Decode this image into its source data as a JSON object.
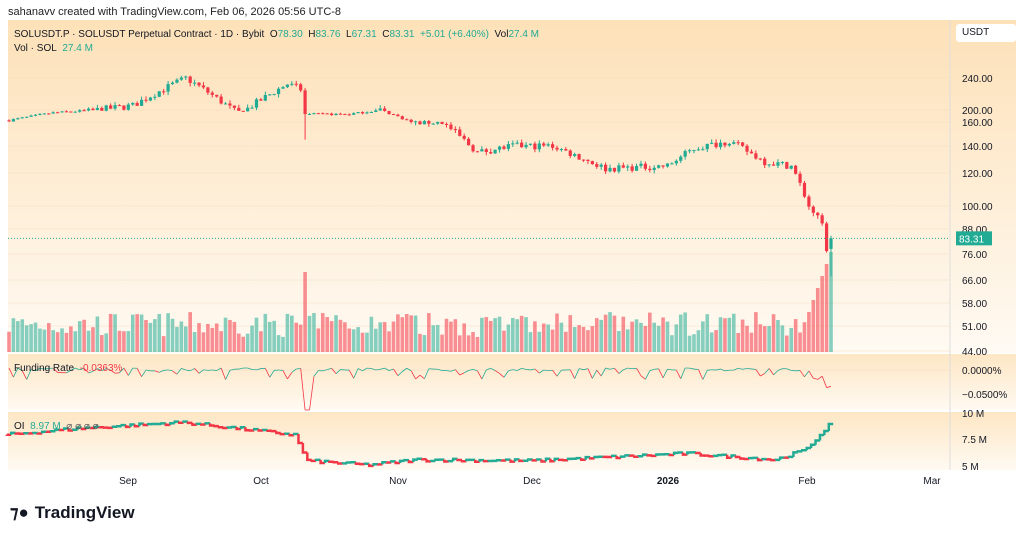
{
  "credit": "sahanavv created with TradingView.com, Feb 06, 2026 05:56 UTC-8",
  "legend": {
    "symbol": "SOLUSDT.P · SOLUSDT Perpetual Contract · 1D · Bybit",
    "o_label": "O",
    "o": "78.30",
    "h_label": "H",
    "h": "83.76",
    "l_label": "L",
    "l": "67.31",
    "c_label": "C",
    "c": "83.31",
    "change": "+5.01 (+6.40%)",
    "vol_label": "Vol",
    "vol": "27.4 M"
  },
  "vol_legend": {
    "label": "Vol · SOL",
    "value": "27.4 M"
  },
  "funding_legend": {
    "label": "Funding Rate",
    "value": "-0.0363%"
  },
  "oi_legend": {
    "label": "OI",
    "value": "8.97 M",
    "icons": "⌀ ⌀ ⌀ ⌀"
  },
  "currency": "USDT",
  "last_price": "83.31",
  "brand": "TradingView",
  "colors": {
    "up": "#22ab94",
    "down": "#f23645",
    "bg_top": "#fde1b8"
  },
  "chart_data": {
    "type": "candlestick",
    "price_ticks": [
      "240.00",
      "200.00",
      "160.00",
      "140.00",
      "120.00",
      "100.00",
      "88.00",
      "76.00",
      "66.00",
      "58.00",
      "51.00",
      "44.00"
    ],
    "funding_ticks": [
      "0.0000%",
      "−0.0500%"
    ],
    "oi_ticks": [
      "10 M",
      "7.5 M",
      "5 M"
    ],
    "x_ticks": [
      "Sep",
      "Oct",
      "Nov",
      "Dec",
      "2026",
      "Feb",
      "Mar"
    ],
    "price_anchors": [
      [
        "Aug 04",
        165
      ],
      [
        "Aug 14",
        190
      ],
      [
        "Aug 24",
        200
      ],
      [
        "Sep 01",
        205
      ],
      [
        "Sep 13",
        240
      ],
      [
        "Sep 25",
        195
      ],
      [
        "Oct 06",
        232
      ],
      [
        "Oct 09",
        225
      ],
      [
        "Oct 10",
        185
      ],
      [
        "Oct 20",
        185
      ],
      [
        "Oct 27",
        200
      ],
      [
        "Nov 03",
        160
      ],
      [
        "Nov 10",
        160
      ],
      [
        "Nov 18",
        135
      ],
      [
        "Nov 26",
        140
      ],
      [
        "Dec 05",
        140
      ],
      [
        "Dec 17",
        123
      ],
      [
        "Dec 31",
        125
      ],
      [
        "Jan 06",
        138
      ],
      [
        "Jan 14",
        144
      ],
      [
        "Jan 22",
        128
      ],
      [
        "Jan 28",
        125
      ],
      [
        "Feb 01",
        100
      ],
      [
        "Feb 04",
        90
      ],
      [
        "Feb 05",
        78.3
      ],
      [
        "Feb 06",
        83.31
      ]
    ],
    "oi_anchors": [
      [
        "Aug 04",
        8.0
      ],
      [
        "Aug 20",
        8.6
      ],
      [
        "Sep 13",
        9.2
      ],
      [
        "Oct 08",
        8.0
      ],
      [
        "Oct 11",
        5.5
      ],
      [
        "Oct 25",
        5.1
      ],
      [
        "Nov 05",
        5.6
      ],
      [
        "Dec 01",
        5.5
      ],
      [
        "Jan 05",
        6.2
      ],
      [
        "Jan 25",
        5.6
      ],
      [
        "Feb 01",
        6.6
      ],
      [
        "Feb 06",
        8.97
      ]
    ]
  }
}
